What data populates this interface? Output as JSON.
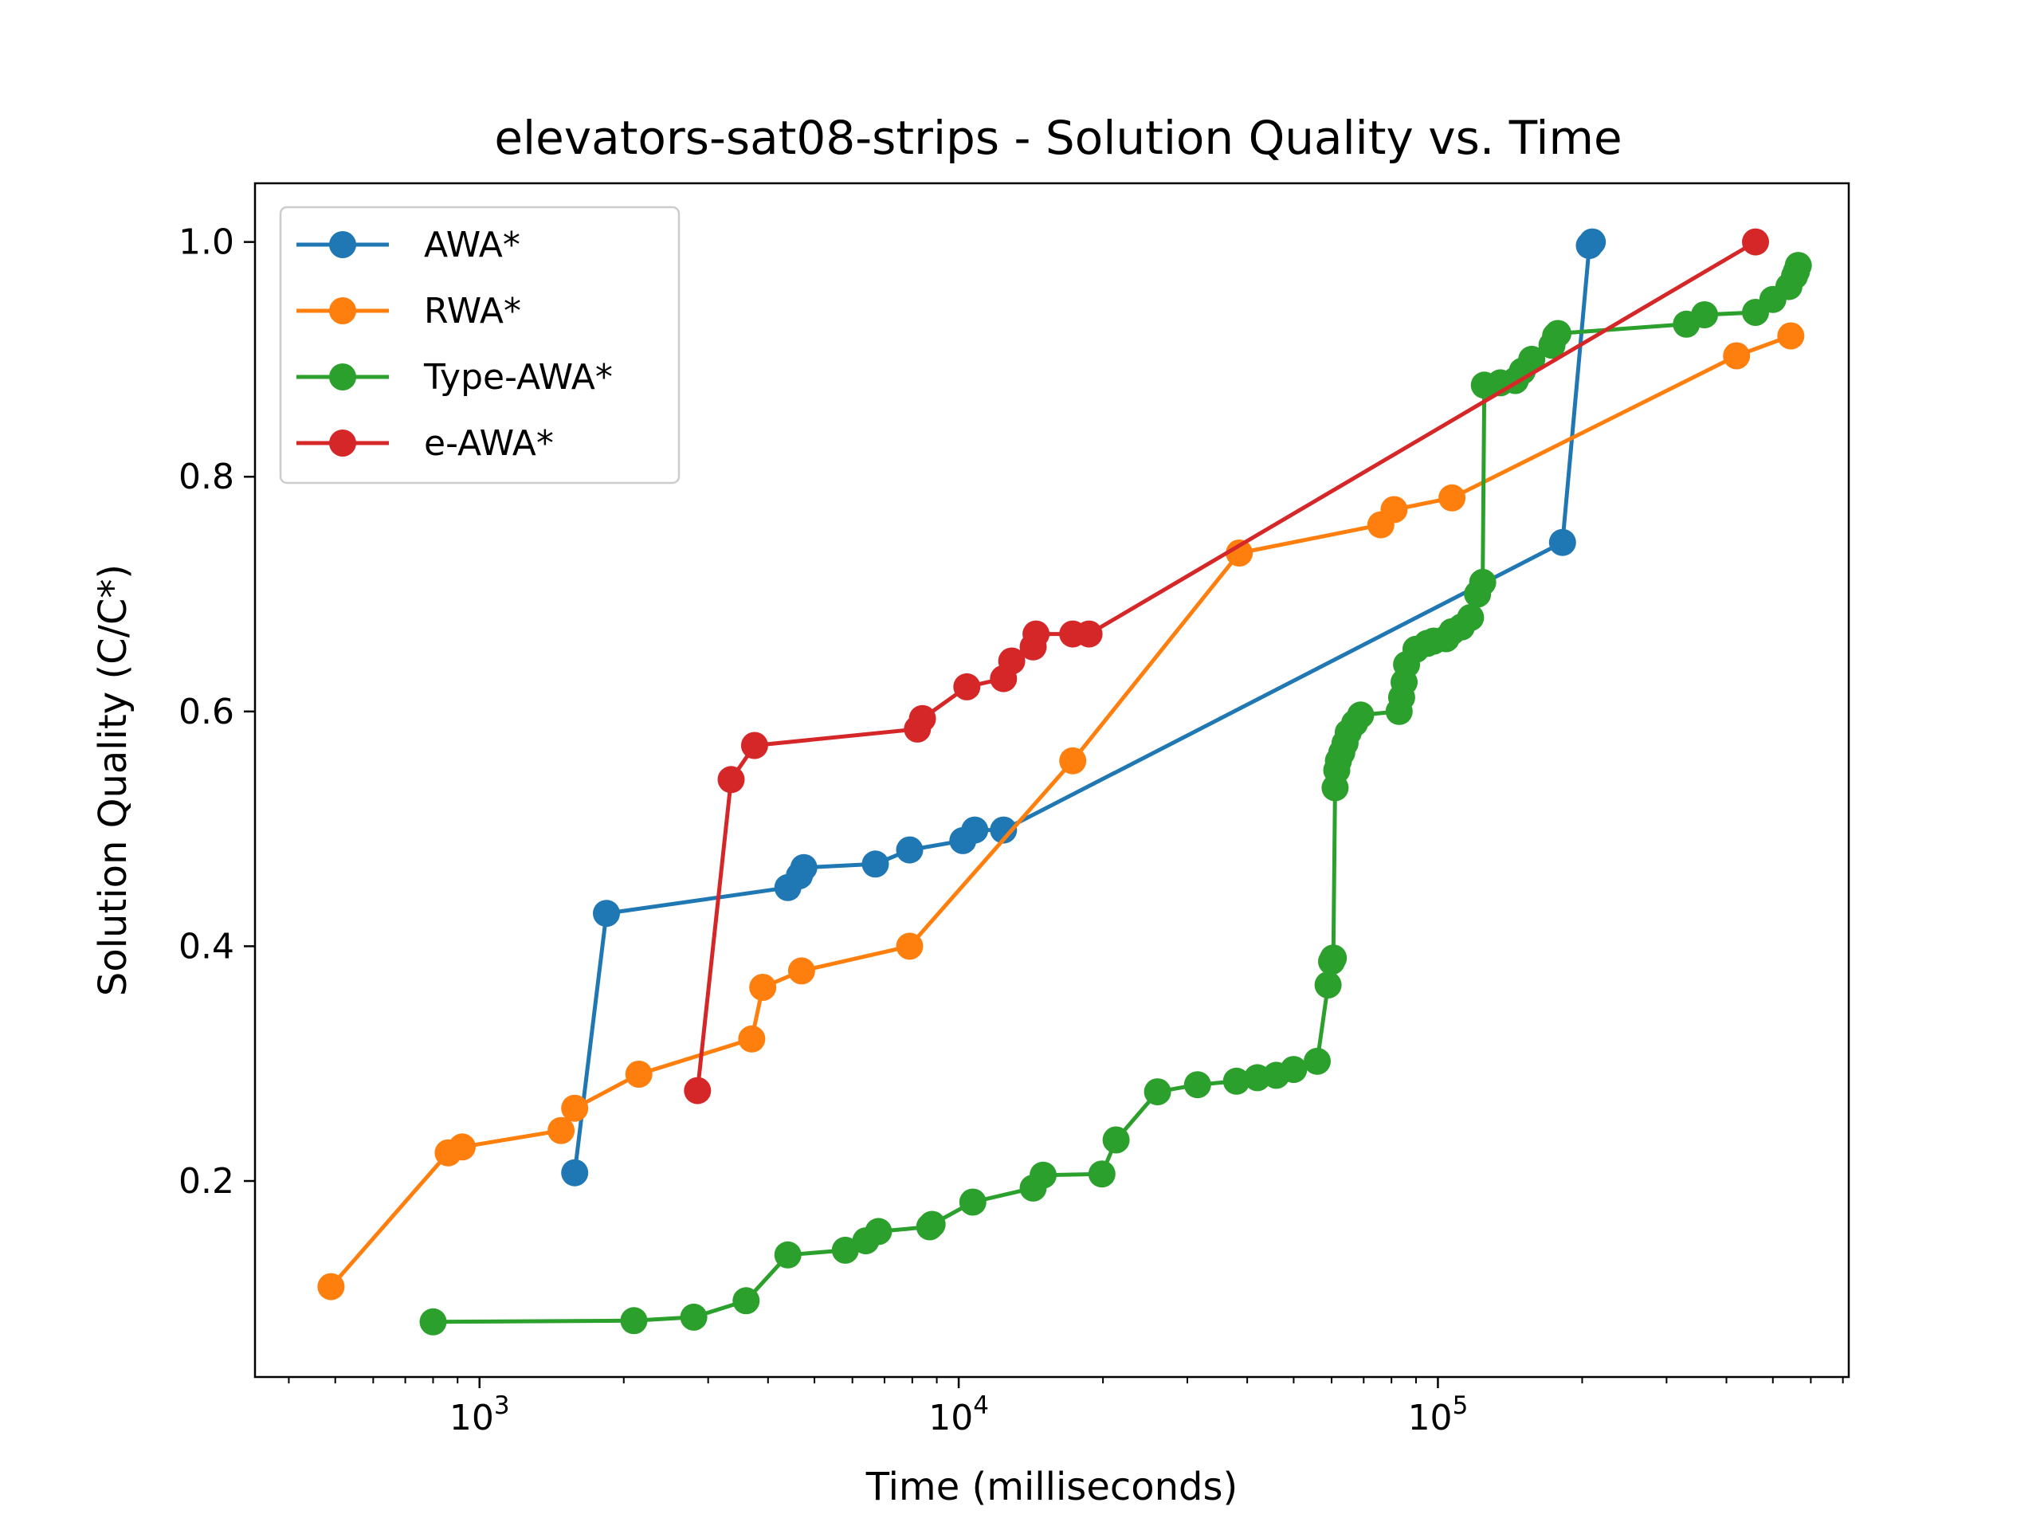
{
  "chart_data": {
    "type": "line",
    "title": "elevators-sat08-strips - Solution Quality vs. Time",
    "xlabel": "Time (milliseconds)",
    "ylabel": "Solution Quality (C/C*)",
    "xscale": "log",
    "xlim": [
      340,
      720000
    ],
    "ylim": [
      0.033,
      1.05
    ],
    "x_ticks": [
      {
        "value": 1000,
        "base": "10",
        "exp": "3"
      },
      {
        "value": 10000,
        "base": "10",
        "exp": "4"
      },
      {
        "value": 100000,
        "base": "10",
        "exp": "5"
      }
    ],
    "y_ticks": [
      {
        "value": 0.2,
        "label": "0.2"
      },
      {
        "value": 0.4,
        "label": "0.4"
      },
      {
        "value": 0.6,
        "label": "0.6"
      },
      {
        "value": 0.8,
        "label": "0.8"
      },
      {
        "value": 1.0,
        "label": "1.0"
      }
    ],
    "grid": false,
    "legend_position": "upper-left",
    "series": [
      {
        "name": "AWA*",
        "color": "#1f77b4",
        "x": [
          1580,
          1840,
          4400,
          4650,
          4750,
          6700,
          7900,
          10200,
          10800,
          12400,
          182000,
          207000,
          210000
        ],
        "y": [
          0.207,
          0.428,
          0.45,
          0.46,
          0.467,
          0.47,
          0.482,
          0.49,
          0.499,
          0.499,
          0.744,
          0.997,
          1.0
        ]
      },
      {
        "name": "RWA*",
        "color": "#ff7f0e",
        "x": [
          490,
          860,
          920,
          1480,
          1580,
          2150,
          3700,
          3900,
          4700,
          7900,
          17300,
          38500,
          76000,
          81000,
          107000,
          420000,
          545000
        ],
        "y": [
          0.11,
          0.224,
          0.229,
          0.243,
          0.262,
          0.291,
          0.321,
          0.365,
          0.379,
          0.4,
          0.558,
          0.735,
          0.759,
          0.772,
          0.782,
          0.903,
          0.92
        ]
      },
      {
        "name": "Type-AWA*",
        "color": "#2ca02c",
        "x": [
          800,
          2100,
          2800,
          3600,
          4400,
          5800,
          6400,
          6800,
          8700,
          8800,
          10700,
          14300,
          15000,
          19900,
          21300,
          26000,
          31500,
          38000,
          42000,
          46000,
          50000,
          56000,
          59000,
          60000,
          60500,
          61000,
          61500,
          62000,
          63000,
          64000,
          65000,
          67000,
          69000,
          83000,
          84000,
          85000,
          86000,
          90000,
          95000,
          98000,
          104000,
          107000,
          112000,
          117000,
          121000,
          124000,
          125000,
          135000,
          145000,
          150000,
          157000,
          173000,
          176000,
          178000,
          330000,
          360000,
          460000,
          500000,
          540000,
          555000,
          560000,
          565000
        ],
        "y": [
          0.08,
          0.081,
          0.084,
          0.098,
          0.137,
          0.141,
          0.149,
          0.157,
          0.161,
          0.163,
          0.182,
          0.194,
          0.205,
          0.206,
          0.235,
          0.276,
          0.282,
          0.285,
          0.288,
          0.29,
          0.295,
          0.302,
          0.367,
          0.387,
          0.39,
          0.535,
          0.55,
          0.558,
          0.565,
          0.573,
          0.582,
          0.59,
          0.597,
          0.6,
          0.612,
          0.625,
          0.64,
          0.653,
          0.658,
          0.66,
          0.662,
          0.668,
          0.672,
          0.68,
          0.7,
          0.71,
          0.878,
          0.88,
          0.882,
          0.89,
          0.9,
          0.912,
          0.92,
          0.922,
          0.93,
          0.938,
          0.94,
          0.951,
          0.962,
          0.971,
          0.975,
          0.98
        ]
      },
      {
        "name": "e-AWA*",
        "color": "#d62728",
        "x": [
          2850,
          3350,
          3750,
          8200,
          8400,
          10400,
          12400,
          12900,
          14300,
          14500,
          17300,
          18700,
          460000
        ],
        "y": [
          0.277,
          0.542,
          0.571,
          0.585,
          0.594,
          0.621,
          0.628,
          0.643,
          0.655,
          0.666,
          0.666,
          0.666,
          1.0
        ]
      }
    ]
  }
}
